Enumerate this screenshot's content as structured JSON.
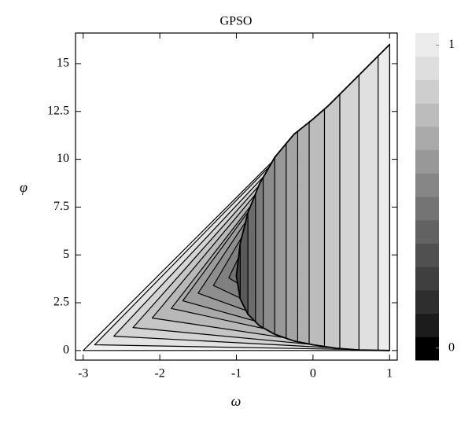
{
  "chart_data": {
    "type": "contour",
    "title": "GPSO",
    "x_label": "ω",
    "y_label": "φ",
    "xlim": [
      -3.1,
      1.1
    ],
    "ylim": [
      -0.5,
      16.6
    ],
    "xticks": [
      -3,
      -2,
      -1,
      0,
      1
    ],
    "yticks": [
      0,
      2.5,
      5,
      7.5,
      10,
      12.5,
      15
    ],
    "contours": [
      {
        "color": "#efefef",
        "x": [
          -3,
          1,
          1
        ],
        "y": [
          0,
          16,
          0
        ]
      },
      {
        "color": "#e2e2e2",
        "x": [
          0.75,
          -2.85,
          0.85,
          1,
          1
        ],
        "y": [
          15,
          0.3,
          0.03,
          0,
          16
        ]
      },
      {
        "color": "#d4d4d4",
        "x": [
          0.55,
          -2.6,
          0.75,
          1,
          1
        ],
        "y": [
          14.2,
          0.75,
          0.04,
          0,
          16
        ]
      },
      {
        "color": "#c6c6c6",
        "x": [
          0.4,
          -2.35,
          0.7,
          1,
          1
        ],
        "y": [
          13.6,
          1.2,
          0.05,
          0,
          16
        ]
      },
      {
        "color": "#b8b8b8",
        "x": [
          0.3,
          -2.1,
          0.65,
          1,
          1
        ],
        "y": [
          13.2,
          1.7,
          0.06,
          0,
          16
        ]
      },
      {
        "color": "#aaaaaa",
        "x": [
          0.2,
          -1.85,
          0.6,
          1,
          1
        ],
        "y": [
          12.8,
          2.2,
          0.07,
          0,
          16
        ]
      },
      {
        "color": "#9c9c9c",
        "x": [
          0.1,
          -1.7,
          0.55,
          1,
          1
        ],
        "y": [
          12.4,
          2.6,
          0.08,
          0,
          16
        ]
      },
      {
        "color": "#8e8e8e",
        "x": [
          0.0,
          -1.5,
          0.5,
          1,
          1
        ],
        "y": [
          12,
          3.0,
          0.1,
          0,
          16
        ]
      },
      {
        "color": "#808080",
        "x": [
          -0.1,
          -1.3,
          0.45,
          1,
          1
        ],
        "y": [
          11.6,
          3.4,
          0.12,
          0,
          16
        ]
      },
      {
        "color": "#727272",
        "x": [
          -0.2,
          -1.1,
          0.4,
          1,
          1
        ],
        "y": [
          11.2,
          3.8,
          0.14,
          0,
          16
        ]
      }
    ],
    "lens": {
      "upper_x": [
        -1,
        -0.95,
        -0.85,
        -0.7,
        -0.5,
        -0.25,
        0,
        0.2,
        0.4,
        1
      ],
      "upper_y": [
        3.9,
        5.6,
        7.2,
        8.7,
        10.1,
        11.3,
        12.1,
        12.8,
        13.6,
        16
      ],
      "lower_x": [
        -1,
        -0.95,
        -0.85,
        -0.7,
        -0.5,
        -0.25,
        0,
        0.3,
        0.6,
        1
      ],
      "lower_y": [
        3.9,
        2.7,
        1.9,
        1.3,
        0.85,
        0.5,
        0.3,
        0.12,
        0.03,
        0
      ],
      "strips": [
        {
          "x": 1,
          "color": "#ececec"
        },
        {
          "x": 0.85,
          "color": "#e0e0e0"
        },
        {
          "x": 0.6,
          "color": "#d4d4d4"
        },
        {
          "x": 0.35,
          "color": "#c8c8c8"
        },
        {
          "x": 0.15,
          "color": "#bcbcbc"
        },
        {
          "x": -0.05,
          "color": "#b0b0b0"
        },
        {
          "x": -0.2,
          "color": "#a4a4a4"
        },
        {
          "x": -0.35,
          "color": "#989898"
        },
        {
          "x": -0.5,
          "color": "#8c8c8c"
        },
        {
          "x": -0.65,
          "color": "#7c7c7c"
        },
        {
          "x": -0.75,
          "color": "#6c6c6c"
        },
        {
          "x": -0.85,
          "color": "#5a5a5a"
        },
        {
          "x": -0.95,
          "color": "#444444"
        }
      ]
    },
    "colorbar": {
      "clim": [
        -0.04,
        1.04
      ],
      "ticks": [
        0,
        1
      ],
      "colors": [
        "#000000",
        "#1c1c1c",
        "#2e2e2e",
        "#3f3f3f",
        "#505050",
        "#626262",
        "#747474",
        "#868686",
        "#989898",
        "#aaaaaa",
        "#bcbcbc",
        "#cecece",
        "#dedede",
        "#ececec"
      ]
    }
  }
}
